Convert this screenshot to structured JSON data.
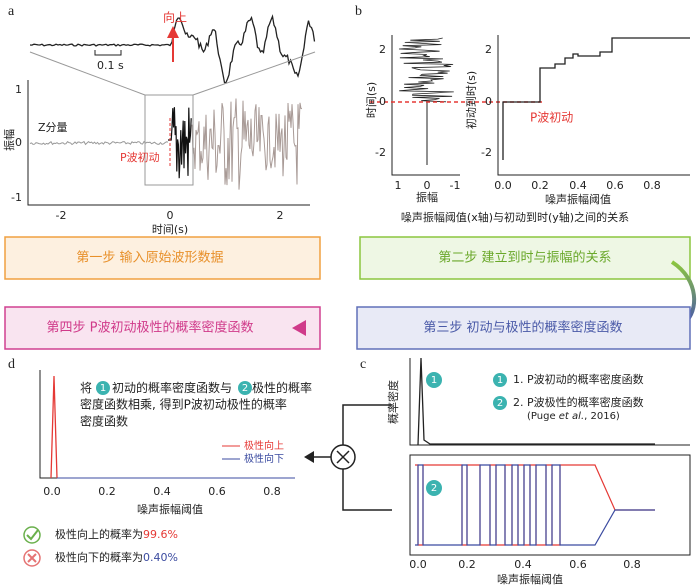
{
  "a": {
    "label": "a",
    "up": "向上",
    "scale": "0.1 s",
    "component": "Z分量",
    "ylabel": "振幅",
    "pick": "P波初动",
    "xlabel": "时间(s)",
    "yticks": [
      "1",
      "0",
      "-1"
    ],
    "xticks": [
      "-2",
      "0",
      "2"
    ]
  },
  "b": {
    "label": "b",
    "left": {
      "ylabel": "时间(s)",
      "xlabel": "振幅",
      "yticks": [
        "2",
        "0",
        "-2"
      ],
      "xticks": [
        "1",
        "0",
        "-1"
      ]
    },
    "right": {
      "ylabel": "初动到时(s)",
      "pick": "P波初动",
      "xlabel": "噪声振幅阈值",
      "yticks": [
        "2",
        "0",
        "-2"
      ],
      "xticks": [
        "0.0",
        "0.2",
        "0.4",
        "0.6",
        "0.8"
      ]
    },
    "caption": "噪声振幅阈值(x轴)与初动到时(y轴)之间的关系"
  },
  "steps": [
    "第一步 输入原始波形数据",
    "第二步 建立到时与振幅的关系",
    "第三步 初动与极性的概率密度函数",
    "第四步 P波初动极性的概率密度函数"
  ],
  "c": {
    "label": "c",
    "ylabel": "概率密度",
    "badge1": "1",
    "badge2": "2",
    "legend1": "1. P波初动的概率密度函数",
    "legend2": "2. P波极性的概率密度函数",
    "cite": [
      "(Puge ",
      "et al.",
      ", 2016)"
    ],
    "xlabel": "噪声振幅阈值",
    "xticks": [
      "0.0",
      "0.2",
      "0.4",
      "0.6",
      "0.8"
    ]
  },
  "d": {
    "label": "d",
    "note": [
      "将",
      "1",
      "初动的概率密度函数与",
      "2",
      "极性的概率",
      "密度函数相乘, 得到P波初动极性的概率",
      "密度函数"
    ],
    "legend": [
      "极性向上",
      "极性向下"
    ],
    "xticks": [
      "0.0",
      "0.2",
      "0.4",
      "0.6",
      "0.8"
    ],
    "xlabel": "噪声振幅阈值",
    "results": [
      {
        "text": "极性向上的概率为",
        "value": "99.6%"
      },
      {
        "text": "极性向下的概率为",
        "value": "0.40%"
      }
    ]
  }
}
